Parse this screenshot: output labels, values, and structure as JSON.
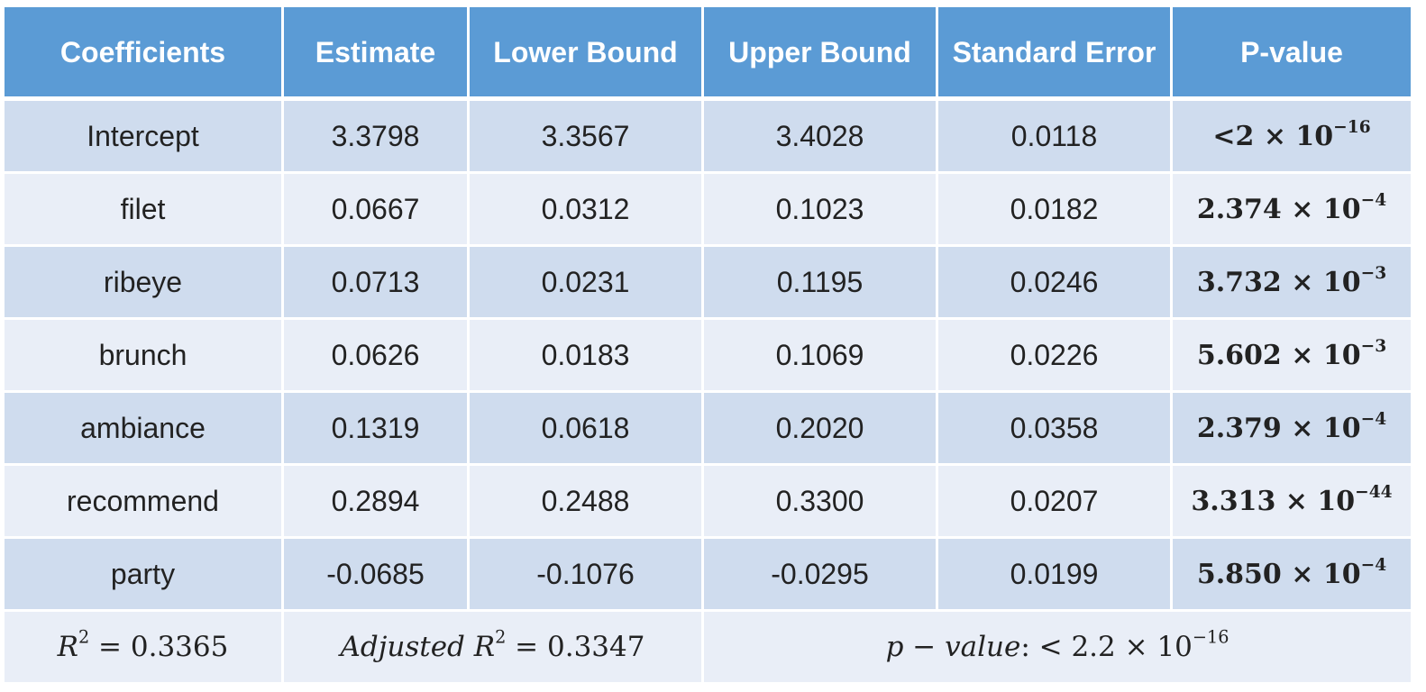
{
  "headers": [
    "Coefficients",
    "Estimate",
    "Lower Bound",
    "Upper Bound",
    "Standard Error",
    "P-value"
  ],
  "rows": [
    {
      "name": "Intercept",
      "estimate": "3.3798",
      "lower": "3.3567",
      "upper": "3.4028",
      "se": "0.0118",
      "p_mantissa": "<2",
      "p_exponent": "−16"
    },
    {
      "name": "filet",
      "estimate": "0.0667",
      "lower": "0.0312",
      "upper": "0.1023",
      "se": "0.0182",
      "p_mantissa": "2.374",
      "p_exponent": "−4"
    },
    {
      "name": "ribeye",
      "estimate": "0.0713",
      "lower": "0.0231",
      "upper": "0.1195",
      "se": "0.0246",
      "p_mantissa": "3.732",
      "p_exponent": "−3"
    },
    {
      "name": "brunch",
      "estimate": "0.0626",
      "lower": "0.0183",
      "upper": "0.1069",
      "se": "0.0226",
      "p_mantissa": "5.602",
      "p_exponent": "−3"
    },
    {
      "name": "ambiance",
      "estimate": "0.1319",
      "lower": "0.0618",
      "upper": "0.2020",
      "se": "0.0358",
      "p_mantissa": "2.379",
      "p_exponent": "−4"
    },
    {
      "name": "recommend",
      "estimate": "0.2894",
      "lower": "0.2488",
      "upper": "0.3300",
      "se": "0.0207",
      "p_mantissa": "3.313",
      "p_exponent": "−44"
    },
    {
      "name": "party",
      "estimate": "-0.0685",
      "lower": "-0.1076",
      "upper": "-0.0295",
      "se": "0.0199",
      "p_mantissa": "5.850",
      "p_exponent": "−4"
    }
  ],
  "times_base": "× 10",
  "stats": {
    "r2_symbol": "R",
    "r2_power": "2",
    "r2_value": " = 0.3365",
    "adj_label": "Adjusted R",
    "adj_power": "2",
    "adj_value": " = 0.3347",
    "p_label": "p − value",
    "p_value_prefix": ": < 2.2 × 10",
    "p_value_exponent": "−16"
  },
  "colors": {
    "header_bg": "#5b9bd5",
    "row_dark": "#cfdcee",
    "row_light": "#e9eef7"
  }
}
